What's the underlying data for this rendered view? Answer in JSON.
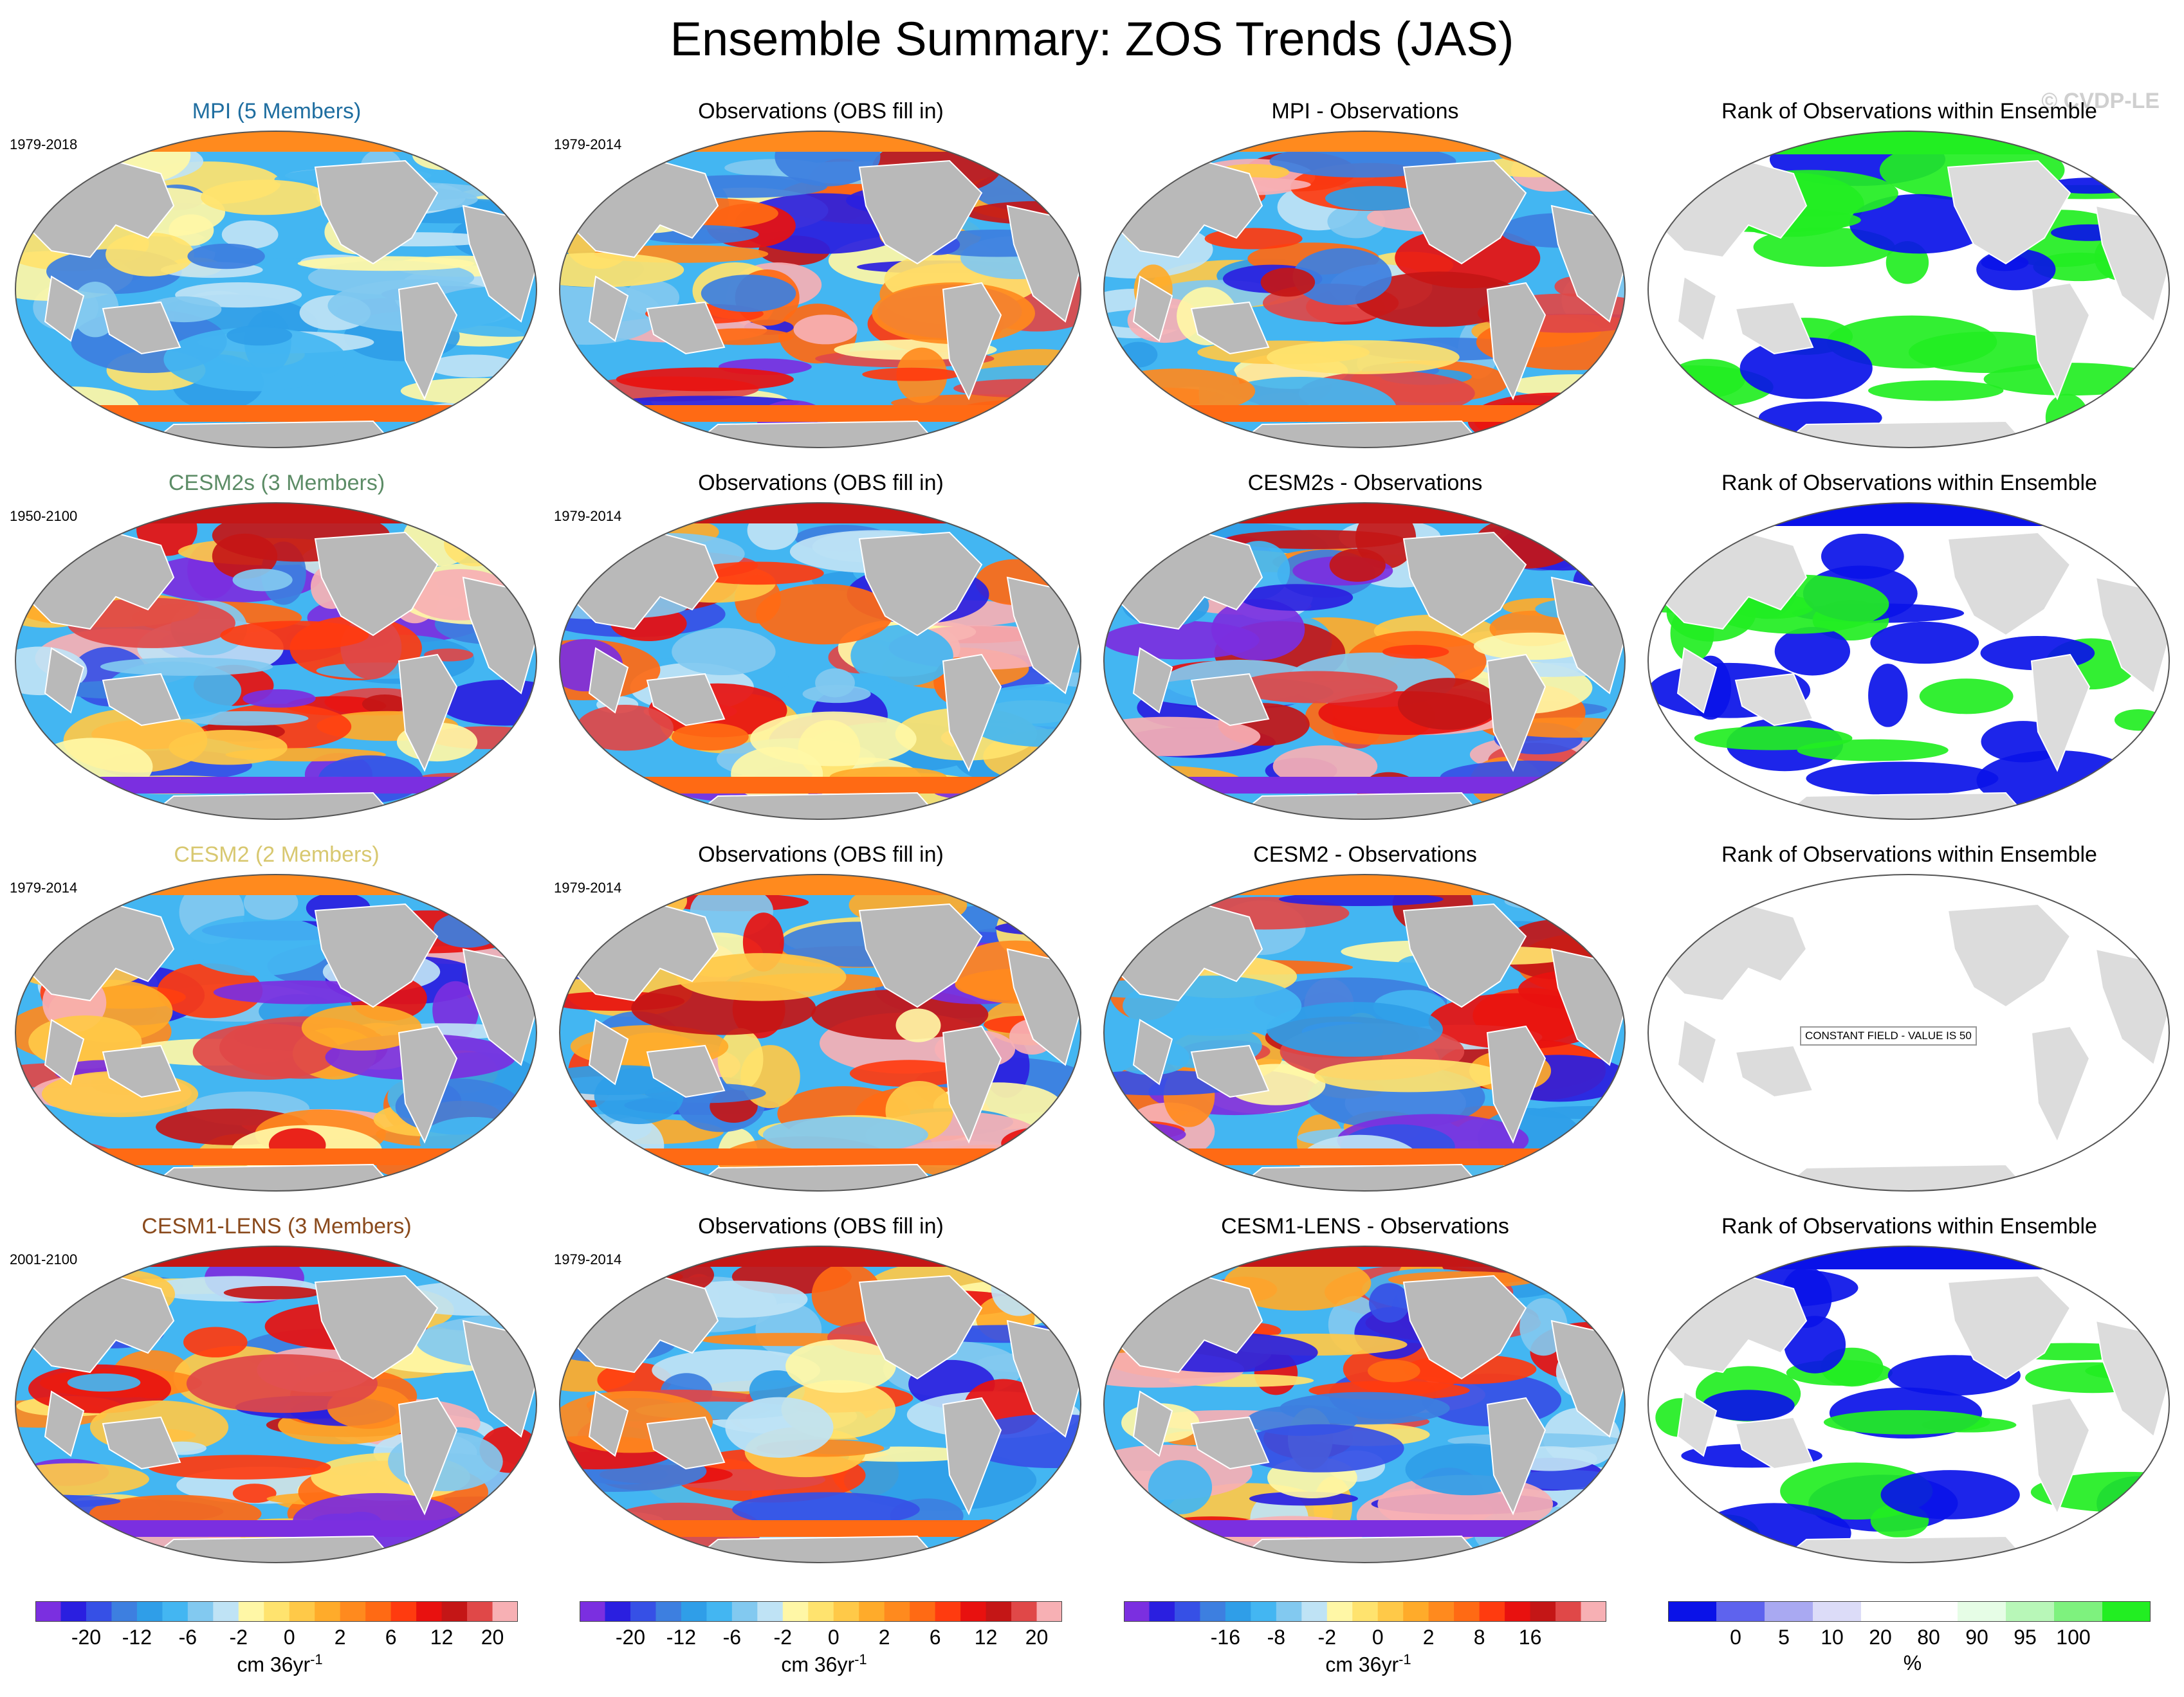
{
  "title": "Ensemble Summary: ZOS Trends (JAS)",
  "watermark": "© CVDP-LE",
  "rows": [
    {
      "model_title": "MPI (5 Members)",
      "model_color": "#1f6ea0",
      "model_period": "1979-2018",
      "obs_title": "Observations (OBS fill in)",
      "obs_period": "1979-2014",
      "diff_title": "MPI - Observations",
      "rank_title": "Rank of Observations within Ensemble"
    },
    {
      "model_title": "CESM2s (3 Members)",
      "model_color": "#5c8c66",
      "model_period": "1950-2100",
      "obs_title": "Observations (OBS fill in)",
      "obs_period": "1979-2014",
      "diff_title": "CESM2s - Observations",
      "rank_title": "Rank of Observations within Ensemble"
    },
    {
      "model_title": "CESM2 (2 Members)",
      "model_color": "#d8c870",
      "model_period": "1979-2014",
      "obs_title": "Observations (OBS fill in)",
      "obs_period": "1979-2014",
      "diff_title": "CESM2 - Observations",
      "rank_title": "Rank of Observations within Ensemble",
      "rank_note": "CONSTANT FIELD - VALUE IS 50"
    },
    {
      "model_title": "CESM1-LENS (3 Members)",
      "model_color": "#8a4a1c",
      "model_period": "2001-2100",
      "obs_title": "Observations (OBS fill in)",
      "obs_period": "1979-2014",
      "diff_title": "CESM1-LENS - Observations",
      "rank_title": "Rank of Observations within Ensemble"
    }
  ],
  "colorbars": [
    {
      "name": "trend",
      "unit": "cm 36yr",
      "unit_sup": "-1",
      "colors": [
        "#7b2fe0",
        "#2a1fe0",
        "#3650e6",
        "#3d7fe0",
        "#2f9ee8",
        "#43b6f2",
        "#82c9f0",
        "#bfe3f5",
        "#fff7a6",
        "#ffe36e",
        "#ffc948",
        "#ffab2a",
        "#ff8a1e",
        "#ff6a14",
        "#ff3b0f",
        "#e8110f",
        "#c41616",
        "#e04848",
        "#f7b0b4"
      ],
      "ticks": [
        "-20",
        "-12",
        "-6",
        "-2",
        "0",
        "2",
        "6",
        "12",
        "20"
      ]
    },
    {
      "name": "trend-obs",
      "unit": "cm 36yr",
      "unit_sup": "-1",
      "colors": [
        "#7b2fe0",
        "#2a1fe0",
        "#3650e6",
        "#3d7fe0",
        "#2f9ee8",
        "#43b6f2",
        "#82c9f0",
        "#bfe3f5",
        "#fff7a6",
        "#ffe36e",
        "#ffc948",
        "#ffab2a",
        "#ff8a1e",
        "#ff6a14",
        "#ff3b0f",
        "#e8110f",
        "#c41616",
        "#e04848",
        "#f7b0b4"
      ],
      "ticks": [
        "-20",
        "-12",
        "-6",
        "-2",
        "0",
        "2",
        "6",
        "12",
        "20"
      ]
    },
    {
      "name": "difference",
      "unit": "cm 36yr",
      "unit_sup": "-1",
      "colors": [
        "#7b2fe0",
        "#2a1fe0",
        "#3650e6",
        "#3d7fe0",
        "#2f9ee8",
        "#43b6f2",
        "#82c9f0",
        "#bfe3f5",
        "#fff7a6",
        "#ffe36e",
        "#ffc948",
        "#ffab2a",
        "#ff8a1e",
        "#ff6a14",
        "#ff3b0f",
        "#e8110f",
        "#c41616",
        "#e04848",
        "#f7b0b4"
      ],
      "ticks": [
        "-16",
        "-8",
        "-2",
        "0",
        "2",
        "8",
        "16"
      ]
    },
    {
      "name": "rank",
      "unit": "%",
      "unit_sup": "",
      "colors": [
        "#0a12e8",
        "#5e63ee",
        "#a9a9f2",
        "#dcdcf8",
        "#ffffff",
        "#ffffff",
        "#e6fde6",
        "#b8f7b8",
        "#7ef27e",
        "#22ee22"
      ],
      "ticks": [
        "0",
        "5",
        "10",
        "20",
        "80",
        "90",
        "95",
        "100"
      ]
    }
  ],
  "chart_data": [
    {
      "type": "heatmap",
      "title": "Ensemble Summary: ZOS Trends (JAS)",
      "description_units": "cm 36yr-1",
      "panels": [
        {
          "row": 1,
          "col": 1,
          "title": "MPI (5 Members)",
          "period": "1979-2018",
          "variable": "ZOS trend"
        },
        {
          "row": 1,
          "col": 2,
          "title": "Observations (OBS fill in)",
          "period": "1979-2014",
          "variable": "ZOS trend"
        },
        {
          "row": 1,
          "col": 3,
          "title": "MPI - Observations",
          "variable": "difference"
        },
        {
          "row": 1,
          "col": 4,
          "title": "Rank of Observations within Ensemble",
          "variable": "rank %"
        },
        {
          "row": 2,
          "col": 1,
          "title": "CESM2s (3 Members)",
          "period": "1950-2100",
          "variable": "ZOS trend"
        },
        {
          "row": 2,
          "col": 2,
          "title": "Observations (OBS fill in)",
          "period": "1979-2014",
          "variable": "ZOS trend"
        },
        {
          "row": 2,
          "col": 3,
          "title": "CESM2s - Observations",
          "variable": "difference"
        },
        {
          "row": 2,
          "col": 4,
          "title": "Rank of Observations within Ensemble",
          "variable": "rank %"
        },
        {
          "row": 3,
          "col": 1,
          "title": "CESM2 (2 Members)",
          "period": "1979-2014",
          "variable": "ZOS trend"
        },
        {
          "row": 3,
          "col": 2,
          "title": "Observations (OBS fill in)",
          "period": "1979-2014",
          "variable": "ZOS trend"
        },
        {
          "row": 3,
          "col": 3,
          "title": "CESM2 - Observations",
          "variable": "difference"
        },
        {
          "row": 3,
          "col": 4,
          "title": "Rank of Observations within Ensemble",
          "variable": "rank %",
          "note": "CONSTANT FIELD - VALUE IS 50"
        },
        {
          "row": 4,
          "col": 1,
          "title": "CESM1-LENS (3 Members)",
          "period": "2001-2100",
          "variable": "ZOS trend"
        },
        {
          "row": 4,
          "col": 2,
          "title": "Observations (OBS fill in)",
          "period": "1979-2014",
          "variable": "ZOS trend"
        },
        {
          "row": 4,
          "col": 3,
          "title": "CESM1-LENS - Observations",
          "variable": "difference"
        },
        {
          "row": 4,
          "col": 4,
          "title": "Rank of Observations within Ensemble",
          "variable": "rank %"
        }
      ],
      "colorbar_ticks": {
        "trend": [
          -20,
          -12,
          -6,
          -2,
          0,
          2,
          6,
          12,
          20
        ],
        "difference": [
          -16,
          -8,
          -2,
          0,
          2,
          8,
          16
        ],
        "rank": [
          0,
          5,
          10,
          20,
          80,
          90,
          95,
          100
        ]
      }
    }
  ]
}
